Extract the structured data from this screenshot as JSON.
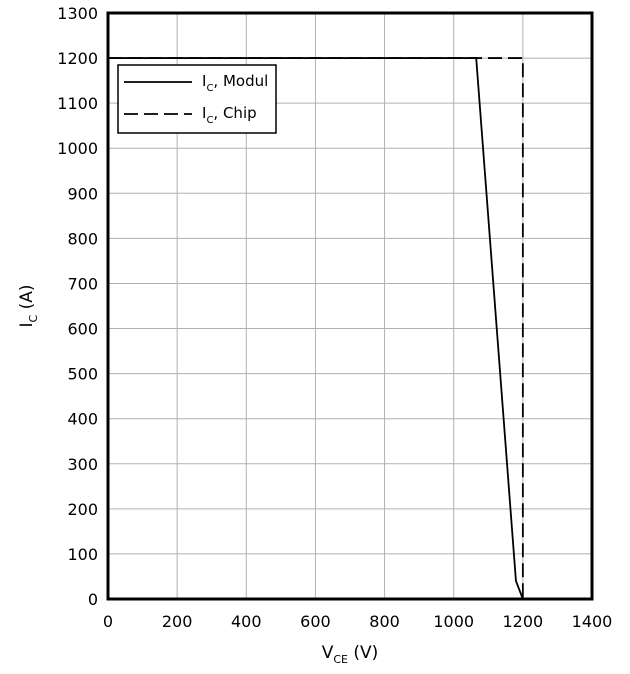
{
  "chart_data": {
    "type": "line",
    "xlabel": {
      "main": "V",
      "sub": "CE",
      "unit": " (V)"
    },
    "ylabel": {
      "main": "I",
      "sub": "C",
      "unit": " (A)"
    },
    "xlim": [
      0,
      1400
    ],
    "ylim": [
      0,
      1300
    ],
    "x_ticks": [
      0,
      200,
      400,
      600,
      800,
      1000,
      1200,
      1400
    ],
    "y_ticks": [
      0,
      100,
      200,
      300,
      400,
      500,
      600,
      700,
      800,
      900,
      1000,
      1100,
      1200,
      1300
    ],
    "grid": true,
    "legend_position": "top-left",
    "series": [
      {
        "name": {
          "main": "I",
          "sub": "C",
          "suffix": ", Modul"
        },
        "style": "solid",
        "color": "#000000",
        "points": [
          [
            0,
            1200
          ],
          [
            1065,
            1200
          ],
          [
            1180,
            40
          ],
          [
            1200,
            0
          ]
        ]
      },
      {
        "name": {
          "main": "I",
          "sub": "C",
          "suffix": ", Chip"
        },
        "style": "dashed",
        "color": "#000000",
        "points": [
          [
            0,
            1200
          ],
          [
            1200,
            1200
          ],
          [
            1200,
            0
          ]
        ]
      }
    ]
  }
}
